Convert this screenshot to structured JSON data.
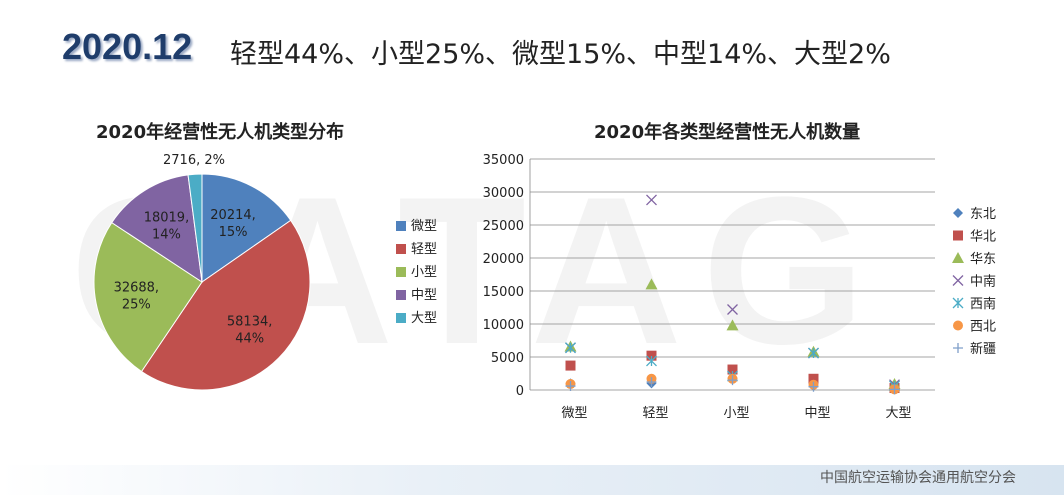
{
  "header": {
    "date": "2020.12",
    "summary": "轻型44%、小型25%、微型15%、中型14%、大型2%"
  },
  "footer": "中国航空运输协会通用航空分会",
  "chart_data": [
    {
      "type": "pie",
      "title": "2020年经营性无人机类型分布",
      "slices": [
        {
          "name": "微型",
          "value": 20214,
          "label": "20214,\n15%",
          "color": "#4f81bd"
        },
        {
          "name": "轻型",
          "value": 58134,
          "label": "58134,\n44%",
          "color": "#c0504d"
        },
        {
          "name": "小型",
          "value": 32688,
          "label": "32688,\n25%",
          "color": "#9bbb59"
        },
        {
          "name": "中型",
          "value": 18019,
          "label": "18019,\n14%",
          "color": "#8064a2"
        },
        {
          "name": "大型",
          "value": 2716,
          "label": "2716, 2%",
          "color": "#4bacc6"
        }
      ],
      "legend": "right"
    },
    {
      "type": "scatter",
      "title": "2020年各类型经营性无人机数量",
      "categories": [
        "微型",
        "轻型",
        "小型",
        "中型",
        "大型"
      ],
      "ylim": [
        0,
        35000
      ],
      "yticks": [
        0,
        5000,
        10000,
        15000,
        20000,
        25000,
        30000,
        35000
      ],
      "grid": true,
      "legend": "right",
      "series": [
        {
          "name": "东北",
          "marker": "diamond",
          "color": "#4f81bd",
          "values": [
            1000,
            1000,
            1800,
            600,
            200
          ]
        },
        {
          "name": "华北",
          "marker": "square",
          "color": "#c0504d",
          "values": [
            3700,
            5200,
            3100,
            1700,
            300
          ]
        },
        {
          "name": "华东",
          "marker": "triangle",
          "color": "#9bbb59",
          "values": [
            6600,
            16000,
            9800,
            5800,
            900
          ]
        },
        {
          "name": "中南",
          "marker": "x",
          "color": "#8064a2",
          "values": [
            6400,
            28800,
            12200,
            5600,
            800
          ]
        },
        {
          "name": "西南",
          "marker": "star",
          "color": "#4bacc6",
          "values": [
            6400,
            4400,
            2100,
            5600,
            600
          ]
        },
        {
          "name": "西北",
          "marker": "circle",
          "color": "#f79646",
          "values": [
            900,
            1700,
            1700,
            800,
            100
          ]
        },
        {
          "name": "新疆",
          "marker": "plus",
          "color": "#7f9fc9",
          "values": [
            600,
            1200,
            1500,
            500,
            100
          ]
        }
      ]
    }
  ]
}
